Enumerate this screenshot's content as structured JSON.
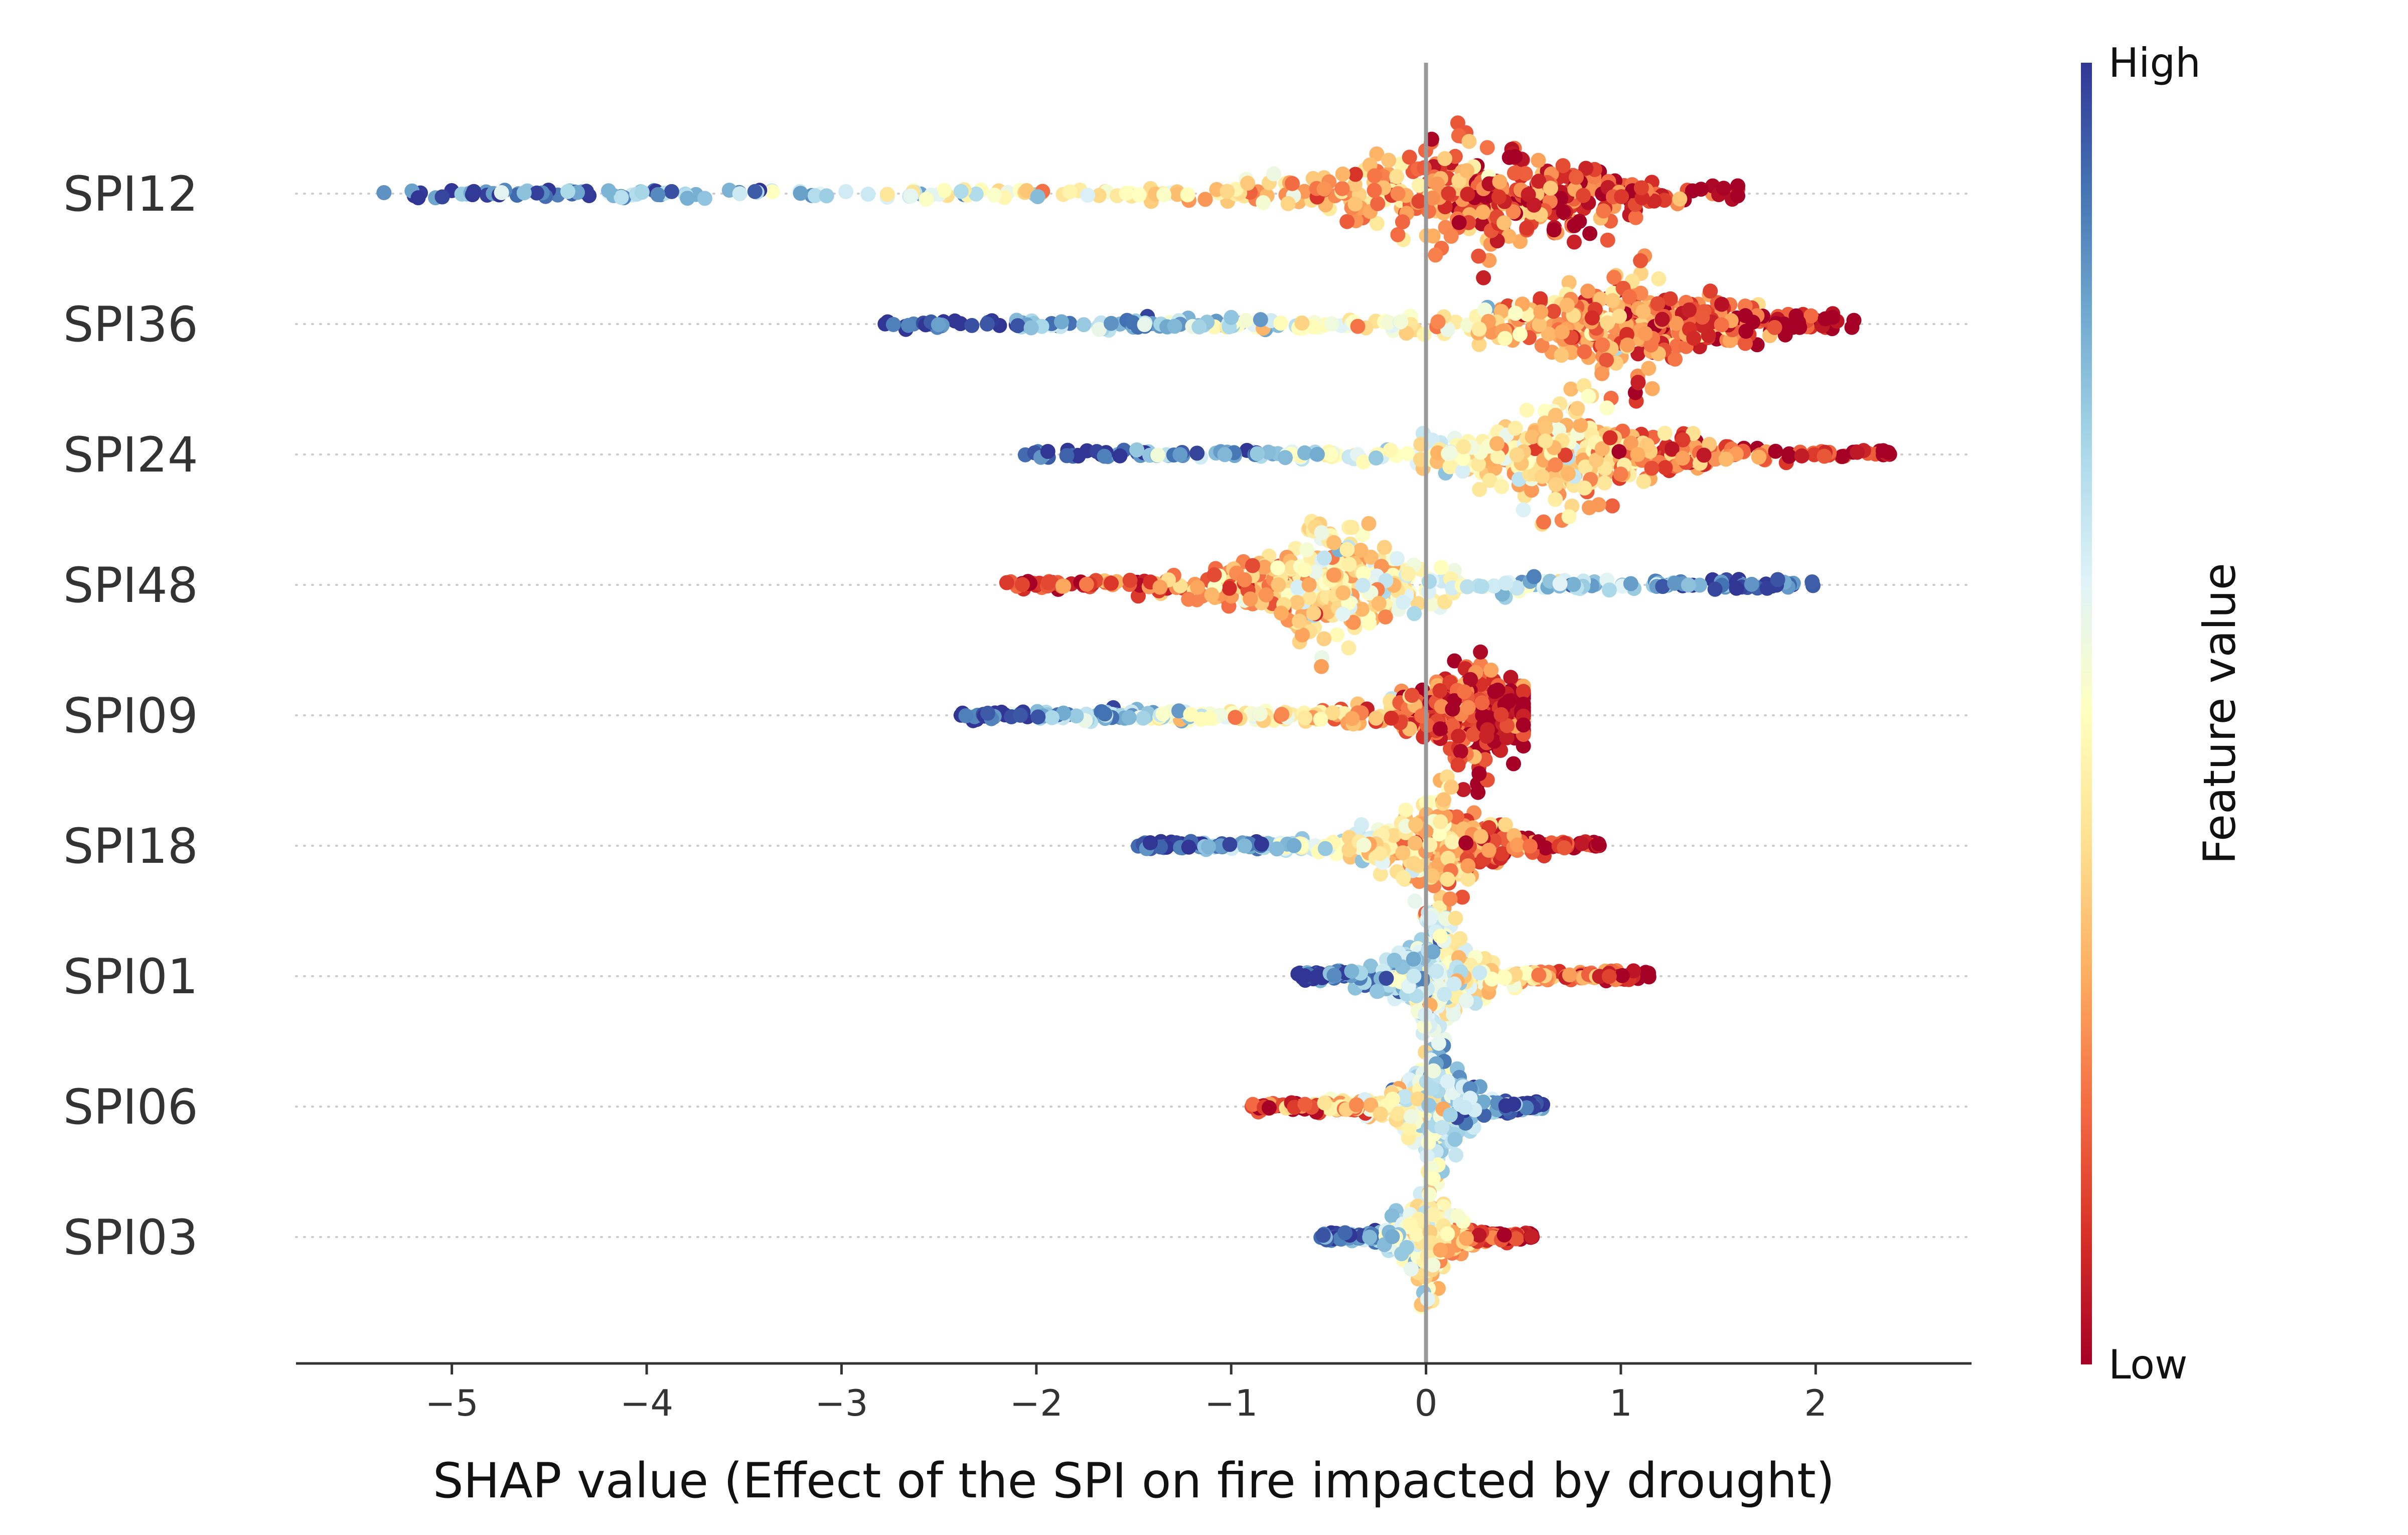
{
  "chart_data": {
    "type": "scatter",
    "subtype": "shap-beeswarm",
    "xlabel": "SHAP value (Effect of the SPI on fire impacted by drought)",
    "xlim": [
      -5.8,
      2.8
    ],
    "xticks": [
      -5,
      -4,
      -3,
      -2,
      -1,
      0,
      1,
      2
    ],
    "xtick_labels": [
      "−5",
      "−4",
      "−3",
      "−2",
      "−1",
      "0",
      "1",
      "2"
    ],
    "zero_line": 0,
    "colorbar": {
      "title": "Feature value",
      "high_label": "High",
      "low_label": "Low",
      "colormap": [
        "#a50026",
        "#d73027",
        "#f46d43",
        "#fdae61",
        "#fee090",
        "#ffffbf",
        "#e0f3f8",
        "#abd9e9",
        "#74add1",
        "#4575b4",
        "#313695"
      ]
    },
    "features": [
      {
        "name": "SPI12",
        "min": -5.4,
        "max": 1.6,
        "mode": 0.28,
        "low_side": "right"
      },
      {
        "name": "SPI36",
        "min": -2.8,
        "max": 2.2,
        "mode": 1.05,
        "low_side": "right"
      },
      {
        "name": "SPI24",
        "min": -2.1,
        "max": 2.4,
        "mode": 0.7,
        "low_side": "right"
      },
      {
        "name": "SPI48",
        "min": -2.25,
        "max": 2.0,
        "mode": -0.5,
        "low_side": "left"
      },
      {
        "name": "SPI09",
        "min": -2.4,
        "max": 0.5,
        "mode": 0.25,
        "low_side": "right"
      },
      {
        "name": "SPI18",
        "min": -1.5,
        "max": 0.9,
        "mode": 0.05,
        "low_side": "right"
      },
      {
        "name": "SPI01",
        "min": -0.7,
        "max": 1.15,
        "mode": 0.05,
        "low_side": "right"
      },
      {
        "name": "SPI06",
        "min": -0.9,
        "max": 0.6,
        "mode": 0.05,
        "low_side": "left"
      },
      {
        "name": "SPI03",
        "min": -0.55,
        "max": 0.55,
        "mode": 0.0,
        "low_side": "right"
      }
    ]
  }
}
